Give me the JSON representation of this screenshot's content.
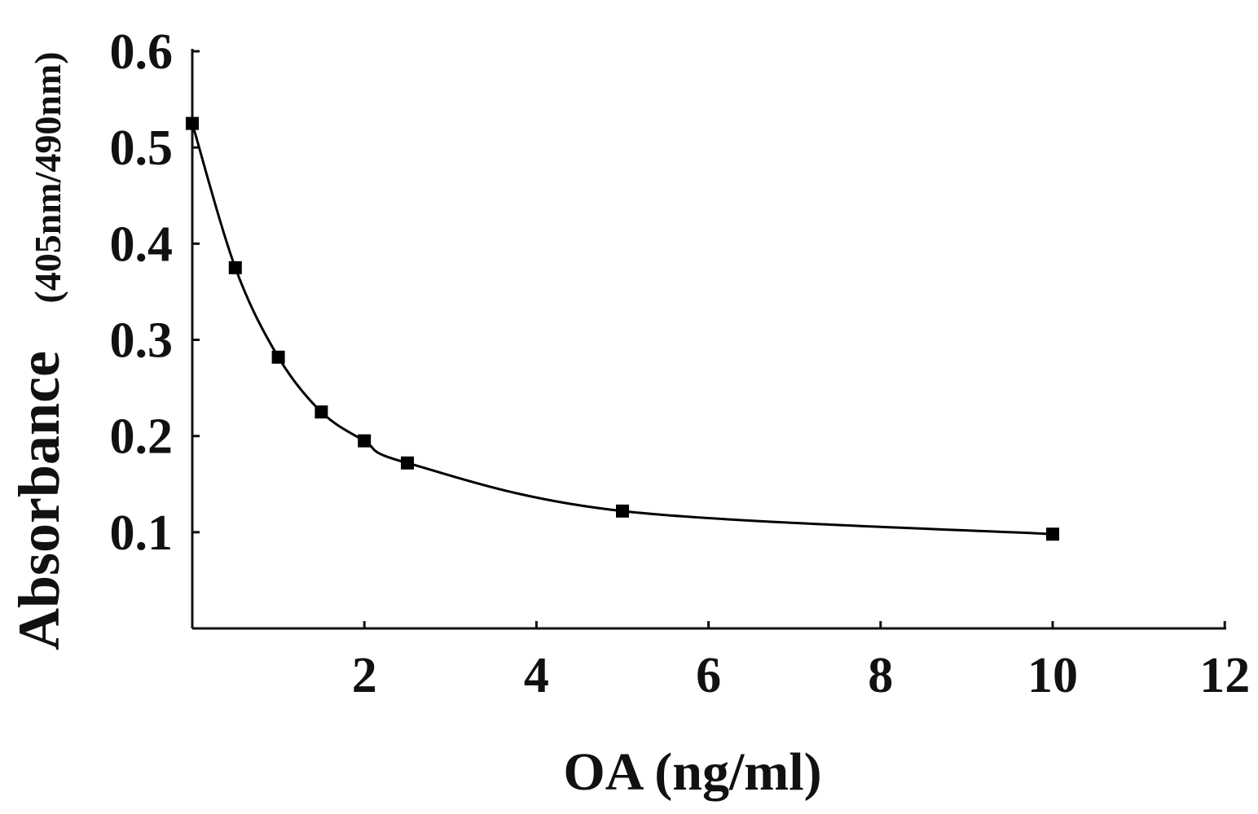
{
  "chart_data": {
    "type": "line",
    "title": "",
    "xlabel": "OA (ng/ml)",
    "ylabel": "Absorbance",
    "ylabel_unit": "(405nm/490nm)",
    "xlim": [
      0,
      12
    ],
    "ylim": [
      0,
      0.6
    ],
    "x_ticks": [
      2,
      4,
      6,
      8,
      10,
      12
    ],
    "y_ticks": [
      0.1,
      0.2,
      0.3,
      0.4,
      0.5,
      0.6
    ],
    "x_tick_labels": [
      "2",
      "4",
      "6",
      "8",
      "10",
      "12"
    ],
    "y_tick_labels": [
      "0.1",
      "0.2",
      "0.3",
      "0.4",
      "0.5",
      "0.6"
    ],
    "grid": false,
    "legend": "none",
    "series": [
      {
        "marker": "square",
        "color": "#000000",
        "x": [
          0,
          0.5,
          1,
          1.5,
          2,
          2.5,
          5,
          10
        ],
        "y": [
          0.525,
          0.375,
          0.282,
          0.225,
          0.195,
          0.172,
          0.122,
          0.098
        ]
      }
    ]
  }
}
